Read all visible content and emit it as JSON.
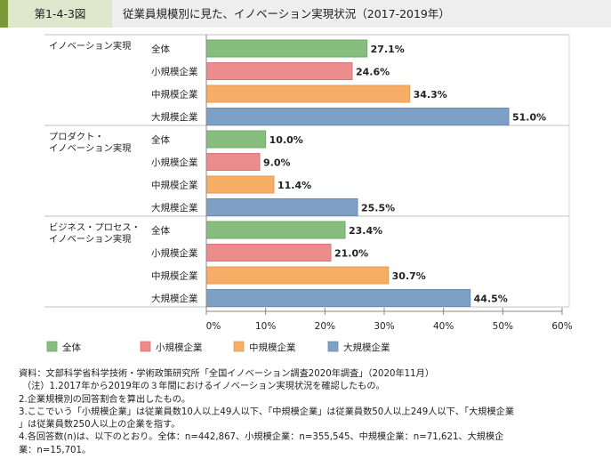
{
  "header": {
    "figure_number": "第1-4-3図",
    "title": "従業員規模別に見た、イノベーション実現状況（2017-2019年）"
  },
  "chart_data": {
    "type": "bar",
    "orientation": "horizontal",
    "title": "従業員規模別に見た、イノベーション実現状況（2017-2019年）",
    "xlabel": "",
    "ylabel": "",
    "xlim": [
      0,
      60
    ],
    "x_ticks": [
      "0%",
      "10%",
      "20%",
      "30%",
      "40%",
      "50%",
      "60%"
    ],
    "x_tick_values": [
      0,
      10,
      20,
      30,
      40,
      50,
      60
    ],
    "grid": false,
    "legend_position": "bottom-left",
    "groups": [
      {
        "label_lines": [
          "イノベーション実現"
        ]
      },
      {
        "label_lines": [
          "プロダクト・",
          "イノベーション実現"
        ]
      },
      {
        "label_lines": [
          "ビジネス・プロセス・",
          "イノベーション実現"
        ]
      }
    ],
    "categories": [
      "全体",
      "小規模企業",
      "中規模企業",
      "大規模企業"
    ],
    "series": [
      {
        "name": "全体",
        "color": "#88bd80",
        "border": "#6fa868",
        "values": [
          27.1,
          10.0,
          23.4
        ]
      },
      {
        "name": "小規模企業",
        "color": "#ec8b8b",
        "border": "#d97676",
        "values": [
          24.6,
          9.0,
          21.0
        ]
      },
      {
        "name": "中規模企業",
        "color": "#f6ae67",
        "border": "#e89a4f",
        "values": [
          34.3,
          11.4,
          30.7
        ]
      },
      {
        "name": "大規模企業",
        "color": "#7fa0c5",
        "border": "#6a8bb0",
        "values": [
          51.0,
          25.5,
          44.5
        ]
      }
    ],
    "value_labels": [
      [
        "27.1%",
        "24.6%",
        "34.3%",
        "51.0%"
      ],
      [
        "10.0%",
        "9.0%",
        "11.4%",
        "25.5%"
      ],
      [
        "23.4%",
        "21.0%",
        "30.7%",
        "44.5%"
      ]
    ]
  },
  "notes": [
    "資料：文部科学省科学技術・学術政策研究所「全国イノベーション調査2020年調査」（2020年11月）",
    "（注）1.2017年から2019年の３年間におけるイノベーション実現状況を確認したもの。",
    "2.企業規模別の回答割合を算出したもの。",
    "3.ここでいう「小規模企業」は従業員数10人以上49人以下、「中規模企業」は従業員数50人以上249人以下、「大規模企業",
    "」は従業員数250人以上の企業を指す。",
    "4.各回答数(n)は、以下のとおり。全体：n=442,867、小規模企業：n=355,545、中規模企業：n=71,621、大規模企",
    "業：n=15,701。"
  ]
}
